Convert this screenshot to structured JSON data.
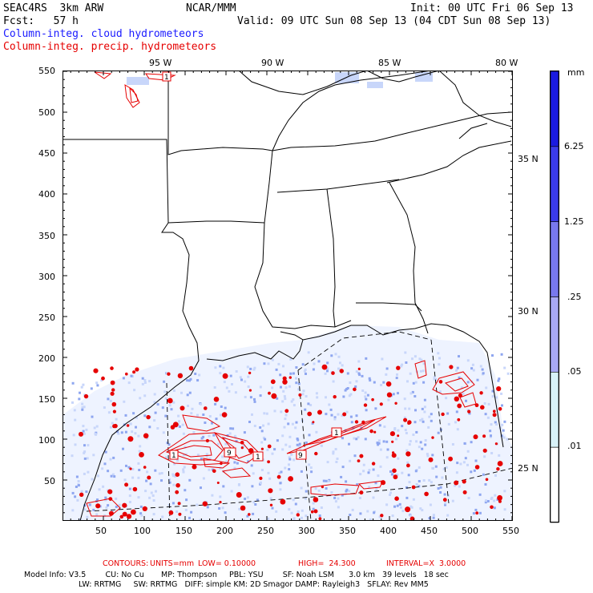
{
  "header": {
    "model": "SEAC4RS  3km ARW",
    "org": "NCAR/MMM",
    "init": "Init: 00 UTC Fri 06 Sep 13",
    "fcst": "Fcst:   57 h",
    "valid": "Valid: 09 UTC Sun 08 Sep 13 (04 CDT Sun 08 Sep 13)",
    "field_blue": "Column-integ. cloud hydrometeors",
    "field_red": "Column-integ. precip. hydrometeors"
  },
  "axes": {
    "x_ticks": [
      "50",
      "100",
      "150",
      "200",
      "250",
      "300",
      "350",
      "400",
      "450",
      "500",
      "550"
    ],
    "y_ticks": [
      "550",
      "500",
      "450",
      "400",
      "350",
      "300",
      "250",
      "200",
      "150",
      "100",
      "50"
    ],
    "lon_labels": [
      "95 W",
      "90 W",
      "85 W",
      "80 W"
    ],
    "lat_labels": [
      "35 N",
      "30 N",
      "25 N"
    ]
  },
  "colorbar": {
    "unit": "mm",
    "labels": [
      "6.25",
      "1.25",
      ".25",
      ".05",
      ".01"
    ],
    "colors": [
      "#1a1ae0",
      "#3b3bea",
      "#7878ee",
      "#a8a8f4",
      "#d8f2f8",
      "#ffffff"
    ]
  },
  "contour_note": {
    "contours": "CONTOURS:",
    "units": "UNITS=mm",
    "low": "LOW= 0.10000",
    "high": "HIGH=  24.300",
    "interval": "INTERVAL=X  3.0000"
  },
  "model_info": {
    "line1": "Model Info: V3.5        CU: No Cu       MP: Thompson     PBL: YSU        SF: Noah LSM      3.0 km   39 levels   18 sec",
    "line2": "LW: RRTMG     SW: RRTMG   DIFF: simple KM: 2D Smagor DAMP: Rayleigh3   SFLAY: Rev MM5"
  },
  "contour_labels": [
    "1",
    "9",
    "1",
    "9",
    "1",
    "1"
  ],
  "colors": {
    "precip_contour": "#e60000",
    "state_lines": "#000000",
    "cloud_light": "#c8d6fa",
    "cloud_med": "#8ea6f0"
  }
}
